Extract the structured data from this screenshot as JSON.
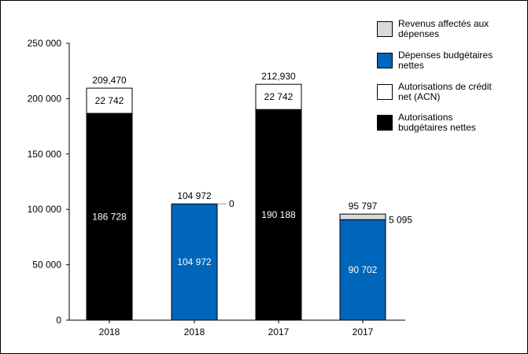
{
  "chart_data": {
    "type": "bar",
    "stacked": true,
    "categories": [
      "2018",
      "2018",
      "2017",
      "2017"
    ],
    "ylim": [
      0,
      250000
    ],
    "yticks": [
      0,
      50000,
      100000,
      150000,
      200000,
      250000
    ],
    "ytick_labels": [
      "0",
      "50 000",
      "100 000",
      "150 000",
      "200 000",
      "250 000"
    ],
    "grid": false,
    "legend_placement": "top-right",
    "series": [
      {
        "name": "Autorisations budgétaires nettes",
        "color": "#000000",
        "values": [
          186728,
          0,
          190188,
          0
        ],
        "labels": [
          "186 728",
          "",
          "190 188",
          ""
        ]
      },
      {
        "name": "Autorisations de crédit net (ACN)",
        "color": "#ffffff",
        "values": [
          22742,
          0,
          22742,
          0
        ],
        "labels": [
          "22 742",
          "",
          "22 742",
          ""
        ]
      },
      {
        "name": "Dépenses budgétaires nettes",
        "color": "#0066bb",
        "values": [
          0,
          104972,
          0,
          90702
        ],
        "labels": [
          "",
          "104 972",
          "",
          "90 702"
        ]
      },
      {
        "name": "Revenus affectés aux dépenses",
        "color": "#d9d9d9",
        "values": [
          0,
          0,
          0,
          5095
        ],
        "labels": [
          "",
          "0",
          "",
          "5 095"
        ]
      }
    ],
    "totals": [
      209470,
      104972,
      212930,
      95797
    ],
    "total_labels": [
      "209,470",
      "104 972",
      "212,930",
      "95 797"
    ],
    "legend_order": [
      {
        "lines": [
          "Revenus affectés aux",
          "dépenses"
        ],
        "color": "#d9d9d9"
      },
      {
        "lines": [
          "Dépenses budgétaires",
          "nettes"
        ],
        "color": "#0066bb"
      },
      {
        "lines": [
          "Autorisations de crédit",
          "net (ACN)"
        ],
        "color": "#ffffff"
      },
      {
        "lines": [
          "Autorisations",
          "budgétaires nettes"
        ],
        "color": "#000000"
      }
    ]
  }
}
